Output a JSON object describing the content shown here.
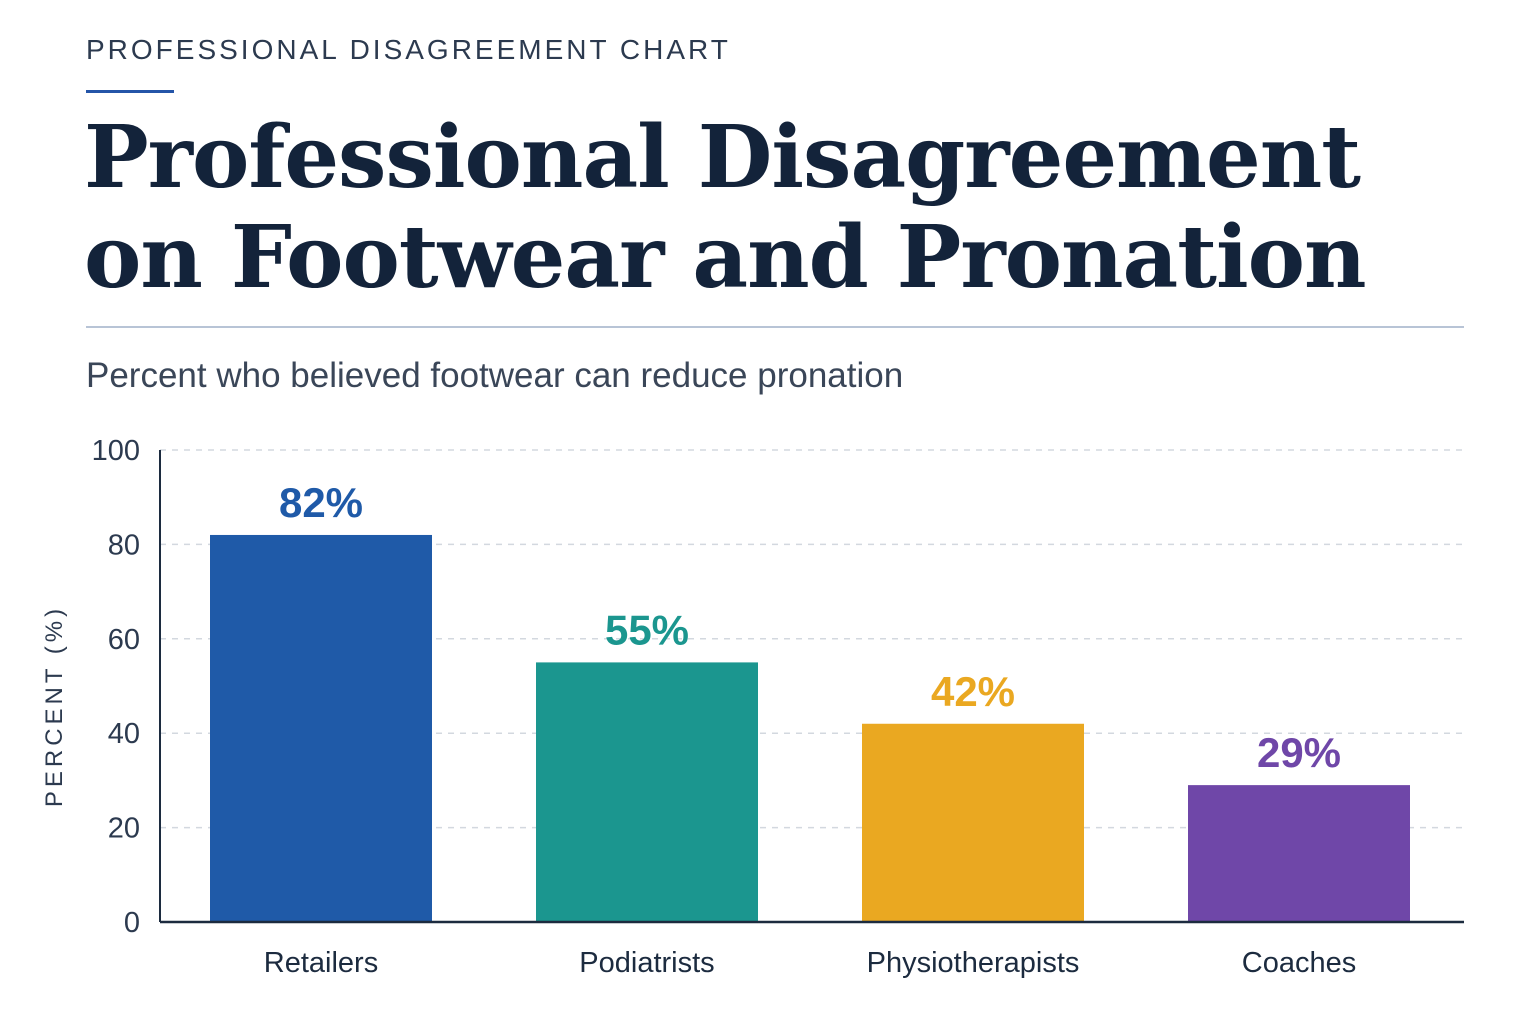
{
  "header": {
    "eyebrow": "PROFESSIONAL DISAGREEMENT CHART",
    "title": "Professional Disagreement on Footwear and Pronation",
    "subtitle": "Percent who believed footwear can reduce pronation"
  },
  "colors": {
    "accent_rule": "#2455a8",
    "gridline": "#d3d8df",
    "axis": "#1c2b3f"
  },
  "chart_data": {
    "type": "bar",
    "title": "Professional Disagreement on Footwear and Pronation",
    "subtitle": "Percent who believed footwear can reduce pronation",
    "xlabel": "",
    "ylabel": "PERCENT (%)",
    "ylim": [
      0,
      100
    ],
    "yticks": [
      0,
      20,
      40,
      60,
      80,
      100
    ],
    "grid": true,
    "categories": [
      "Retailers",
      "Podiatrists",
      "Physiotherapists",
      "Coaches"
    ],
    "values": [
      82,
      55,
      42,
      29
    ],
    "data_labels": [
      "82%",
      "55%",
      "42%",
      "29%"
    ],
    "bar_colors": [
      "#1f5aa8",
      "#1b968f",
      "#eaa821",
      "#6f47a8"
    ]
  }
}
